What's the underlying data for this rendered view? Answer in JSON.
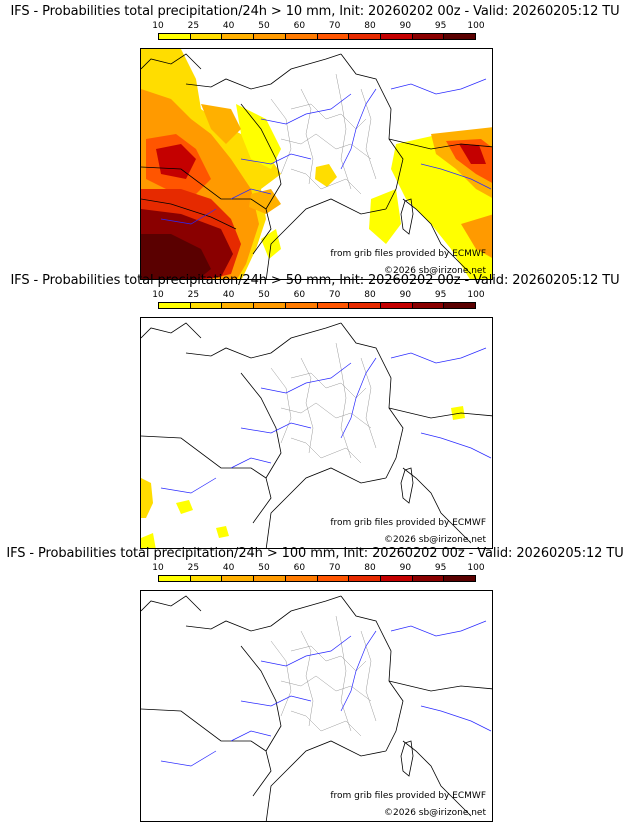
{
  "legend": {
    "ticks": [
      "10",
      "25",
      "40",
      "50",
      "60",
      "70",
      "80",
      "90",
      "95",
      "100"
    ],
    "colors": [
      "#ffff00",
      "#ffdd00",
      "#ffb000",
      "#ff9a00",
      "#ff7a00",
      "#ff5500",
      "#e62a00",
      "#c40000",
      "#8a0000",
      "#5a0000"
    ]
  },
  "panels": [
    {
      "title": "IFS - Probabilities total precipitation/24h > 10 mm, Init: 20260202 00z - Valid: 20260205:12 TU",
      "credit": "from grib files provided by ECMWF",
      "copyright": "©2026 sb@irizone.net"
    },
    {
      "title": "IFS - Probabilities total precipitation/24h > 50 mm, Init: 20260202 00z - Valid: 20260205:12 TU",
      "credit": "from grib files provided by ECMWF",
      "copyright": "©2026 sb@irizone.net"
    },
    {
      "title": "IFS - Probabilities total precipitation/24h > 100 mm, Init: 20260202 00z - Valid: 20260205:12 TU",
      "credit": "from grib files provided by ECMWF",
      "copyright": "©2026 sb@irizone.net"
    }
  ]
}
